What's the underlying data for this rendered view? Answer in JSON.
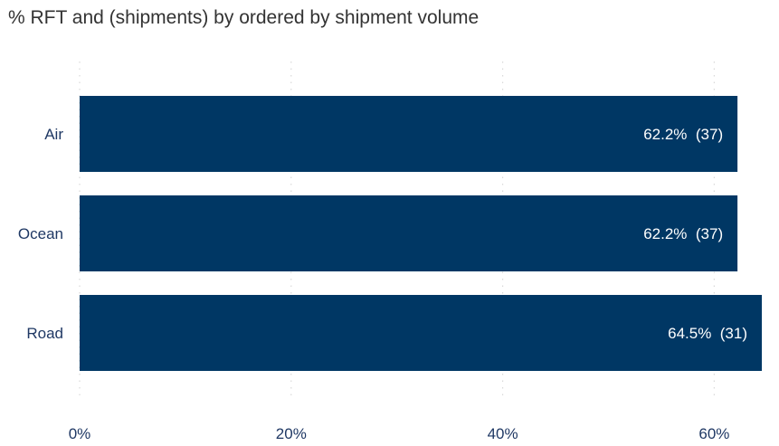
{
  "chart_data": {
    "type": "bar",
    "orientation": "horizontal",
    "title": "% RFT and (shipments) by ordered by shipment volume",
    "xlabel": "",
    "ylabel": "",
    "categories": [
      "Air",
      "Ocean",
      "Road"
    ],
    "values": [
      62.2,
      62.2,
      64.5
    ],
    "shipments": [
      37,
      37,
      31
    ],
    "value_labels": [
      "62.2%",
      "62.2%",
      "64.5%"
    ],
    "shipment_labels": [
      "(37)",
      "(37)",
      "(31)"
    ],
    "x_ticks": [
      0,
      20,
      40,
      60
    ],
    "x_tick_labels": [
      "0%",
      "20%",
      "40%",
      "60%"
    ],
    "xlim": [
      0,
      64.5
    ],
    "grid": "vertical dotted",
    "legend": "none"
  },
  "colors": {
    "bar": "#003764",
    "data_label": "#ffffff",
    "axis_text": "#1f3864",
    "title_text": "#333333",
    "grid": "#d9d9d9"
  }
}
